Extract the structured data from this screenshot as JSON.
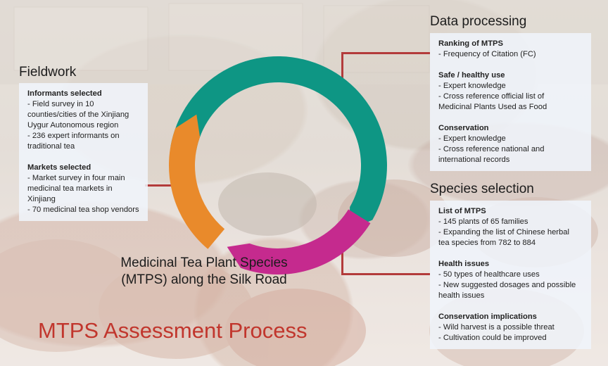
{
  "colors": {
    "teal": "#0e9684",
    "orange": "#e98a2b",
    "magenta": "#c52a8e",
    "connector_red": "#b33b3b",
    "title_red": "#c1362d"
  },
  "main_title": "MTPS Assessment Process",
  "center_label": {
    "line1": "Medicinal Tea Plant Species",
    "line2": "(MTPS) along the Silk Road"
  },
  "fieldwork": {
    "title": "Fieldwork",
    "groups": [
      {
        "heading": "Informants selected",
        "items": [
          "- Field survey in 10",
          "counties/cities of the Xinjiang",
          "Uygur Autonomous region",
          "- 236 expert informants on",
          "traditional tea"
        ]
      },
      {
        "heading": "Markets selected",
        "items": [
          "- Market survey in four main",
          "medicinal tea markets in",
          "Xinjiang",
          "- 70 medicinal tea shop vendors"
        ]
      }
    ]
  },
  "data_processing": {
    "title": "Data processing",
    "groups": [
      {
        "heading": "Ranking of MTPS",
        "items": [
          "- Frequency of Citation (FC)"
        ]
      },
      {
        "heading": "Safe / healthy use",
        "items": [
          "- Expert knowledge",
          "- Cross reference official list of",
          "Medicinal Plants Used as Food"
        ]
      },
      {
        "heading": "Conservation",
        "items": [
          "- Expert knowledge",
          "- Cross reference national and",
          "international records"
        ]
      }
    ]
  },
  "species_selection": {
    "title": "Species selection",
    "groups": [
      {
        "heading": "List of MTPS",
        "items": [
          "- 145 plants of 65 families",
          "- Expanding the list of Chinese herbal",
          "tea species from 782 to 884"
        ]
      },
      {
        "heading": "Health issues",
        "items": [
          "- 50 types of healthcare uses",
          "- New suggested dosages and possible",
          "health issues"
        ]
      },
      {
        "heading": "Conservation implications",
        "items": [
          "- Wild harvest is a possible threat",
          "- Cultivation could be improved"
        ]
      }
    ]
  }
}
